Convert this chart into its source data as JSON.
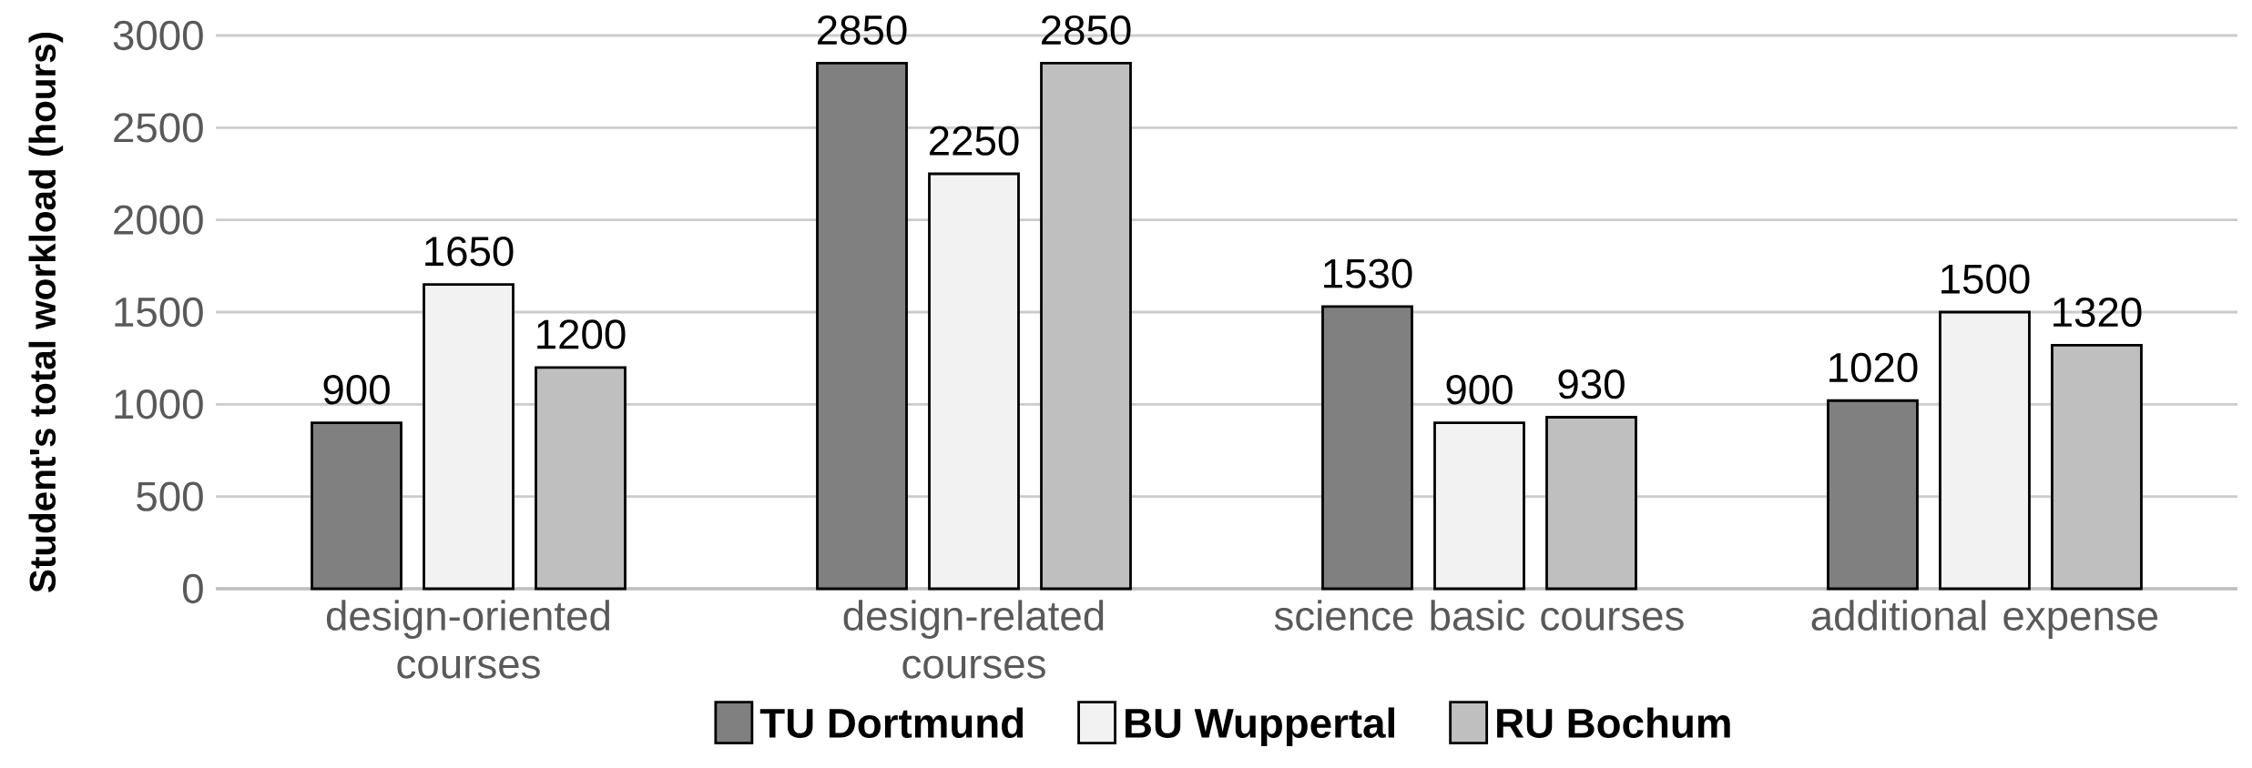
{
  "chart_data": {
    "type": "bar",
    "ylabel": "Student's total workload (hours)",
    "categories": [
      "design-oriented courses",
      "design-related courses",
      "science basic courses",
      "additional expense"
    ],
    "series": [
      {
        "name": "TU Dortmund",
        "color": "#808080",
        "values": [
          900,
          2850,
          1530,
          1020
        ]
      },
      {
        "name": "BU Wuppertal",
        "color": "#f2f2f2",
        "values": [
          1650,
          2250,
          900,
          1500
        ]
      },
      {
        "name": "RU Bochum",
        "color": "#bfbfbf",
        "values": [
          1200,
          2850,
          930,
          1320
        ]
      }
    ],
    "ylim": [
      0,
      3000
    ],
    "yticks": [
      0,
      500,
      1000,
      1500,
      2000,
      2500,
      3000
    ],
    "grid": "y",
    "legend": "bottom",
    "data_labels": true
  }
}
